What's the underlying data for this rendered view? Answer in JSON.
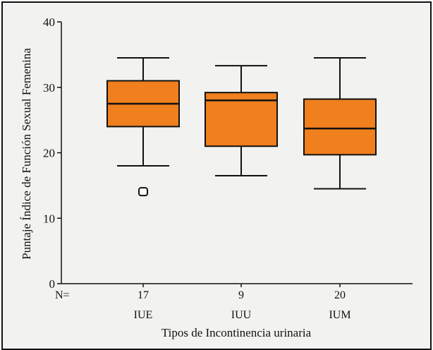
{
  "chart_data": {
    "type": "boxplot",
    "xlabel": "Tipos de Incontinencia urinaria",
    "ylabel": "Puntaje Índice de Función Sexual Femenina",
    "ylim": [
      0,
      40
    ],
    "yticks": [
      0,
      10,
      20,
      30,
      40
    ],
    "n_label": "N=",
    "categories": [
      "IUE",
      "IUU",
      "IUM"
    ],
    "n_values": [
      "17",
      "9",
      "20"
    ],
    "boxes": [
      {
        "category": "IUE",
        "n": 17,
        "whisker_low": 18,
        "q1": 24,
        "median": 27.5,
        "q3": 31,
        "whisker_high": 34.5,
        "outliers": [
          14
        ]
      },
      {
        "category": "IUU",
        "n": 9,
        "whisker_low": 16.5,
        "q1": 21,
        "median": 28,
        "q3": 29.2,
        "whisker_high": 33.3,
        "outliers": []
      },
      {
        "category": "IUM",
        "n": 20,
        "whisker_low": 14.5,
        "q1": 19.7,
        "median": 23.7,
        "q3": 28.2,
        "whisker_high": 34.5,
        "outliers": []
      }
    ],
    "box_color": "#f07f1e",
    "line_color": "#111111",
    "grid": false,
    "legend": "none"
  }
}
